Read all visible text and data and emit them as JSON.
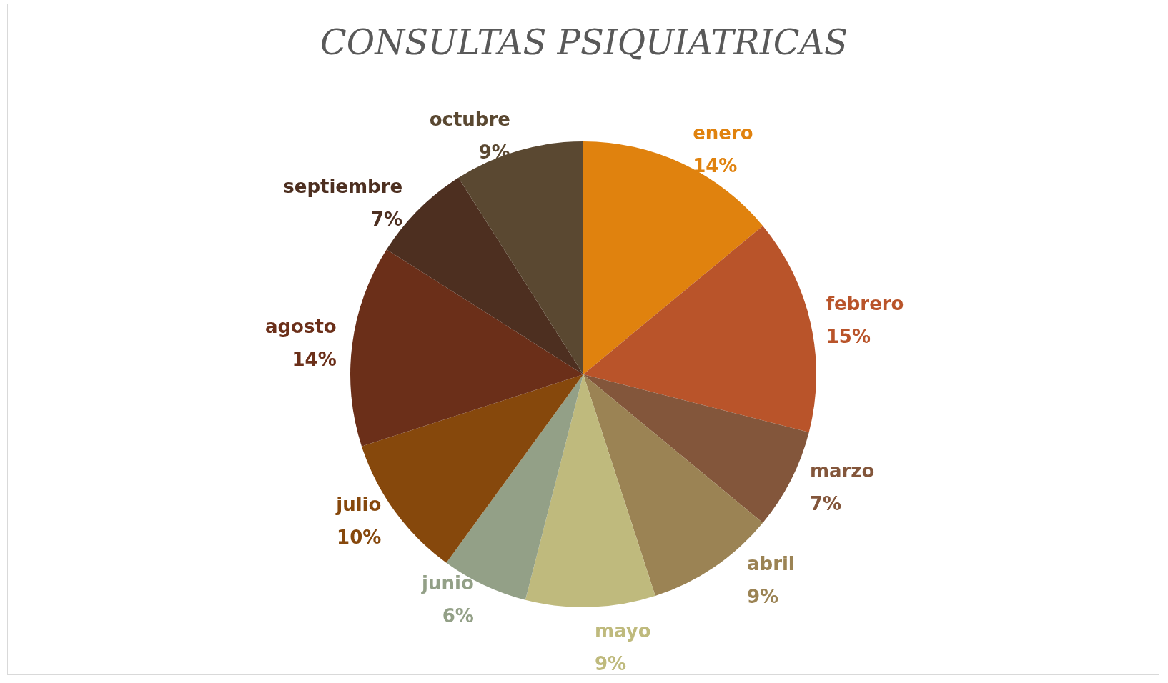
{
  "chart_data": {
    "type": "pie",
    "title": "CONSULTAS PSIQUIATRICAS",
    "categories": [
      "enero",
      "febrero",
      "marzo",
      "abril",
      "mayo",
      "junio",
      "julio",
      "agosto",
      "septiembre",
      "octubre"
    ],
    "values": [
      14,
      15,
      7,
      9,
      9,
      6,
      10,
      14,
      7,
      9
    ],
    "value_labels": [
      "14%",
      "15%",
      "7%",
      "9%",
      "9%",
      "6%",
      "10%",
      "14%",
      "7%",
      "9%"
    ],
    "colors": [
      "#e0820e",
      "#b9542a",
      "#83563b",
      "#9b8354",
      "#bfba7d",
      "#93a087",
      "#86480c",
      "#6b2f19",
      "#4d2f20",
      "#5a4831"
    ],
    "legend": false
  }
}
